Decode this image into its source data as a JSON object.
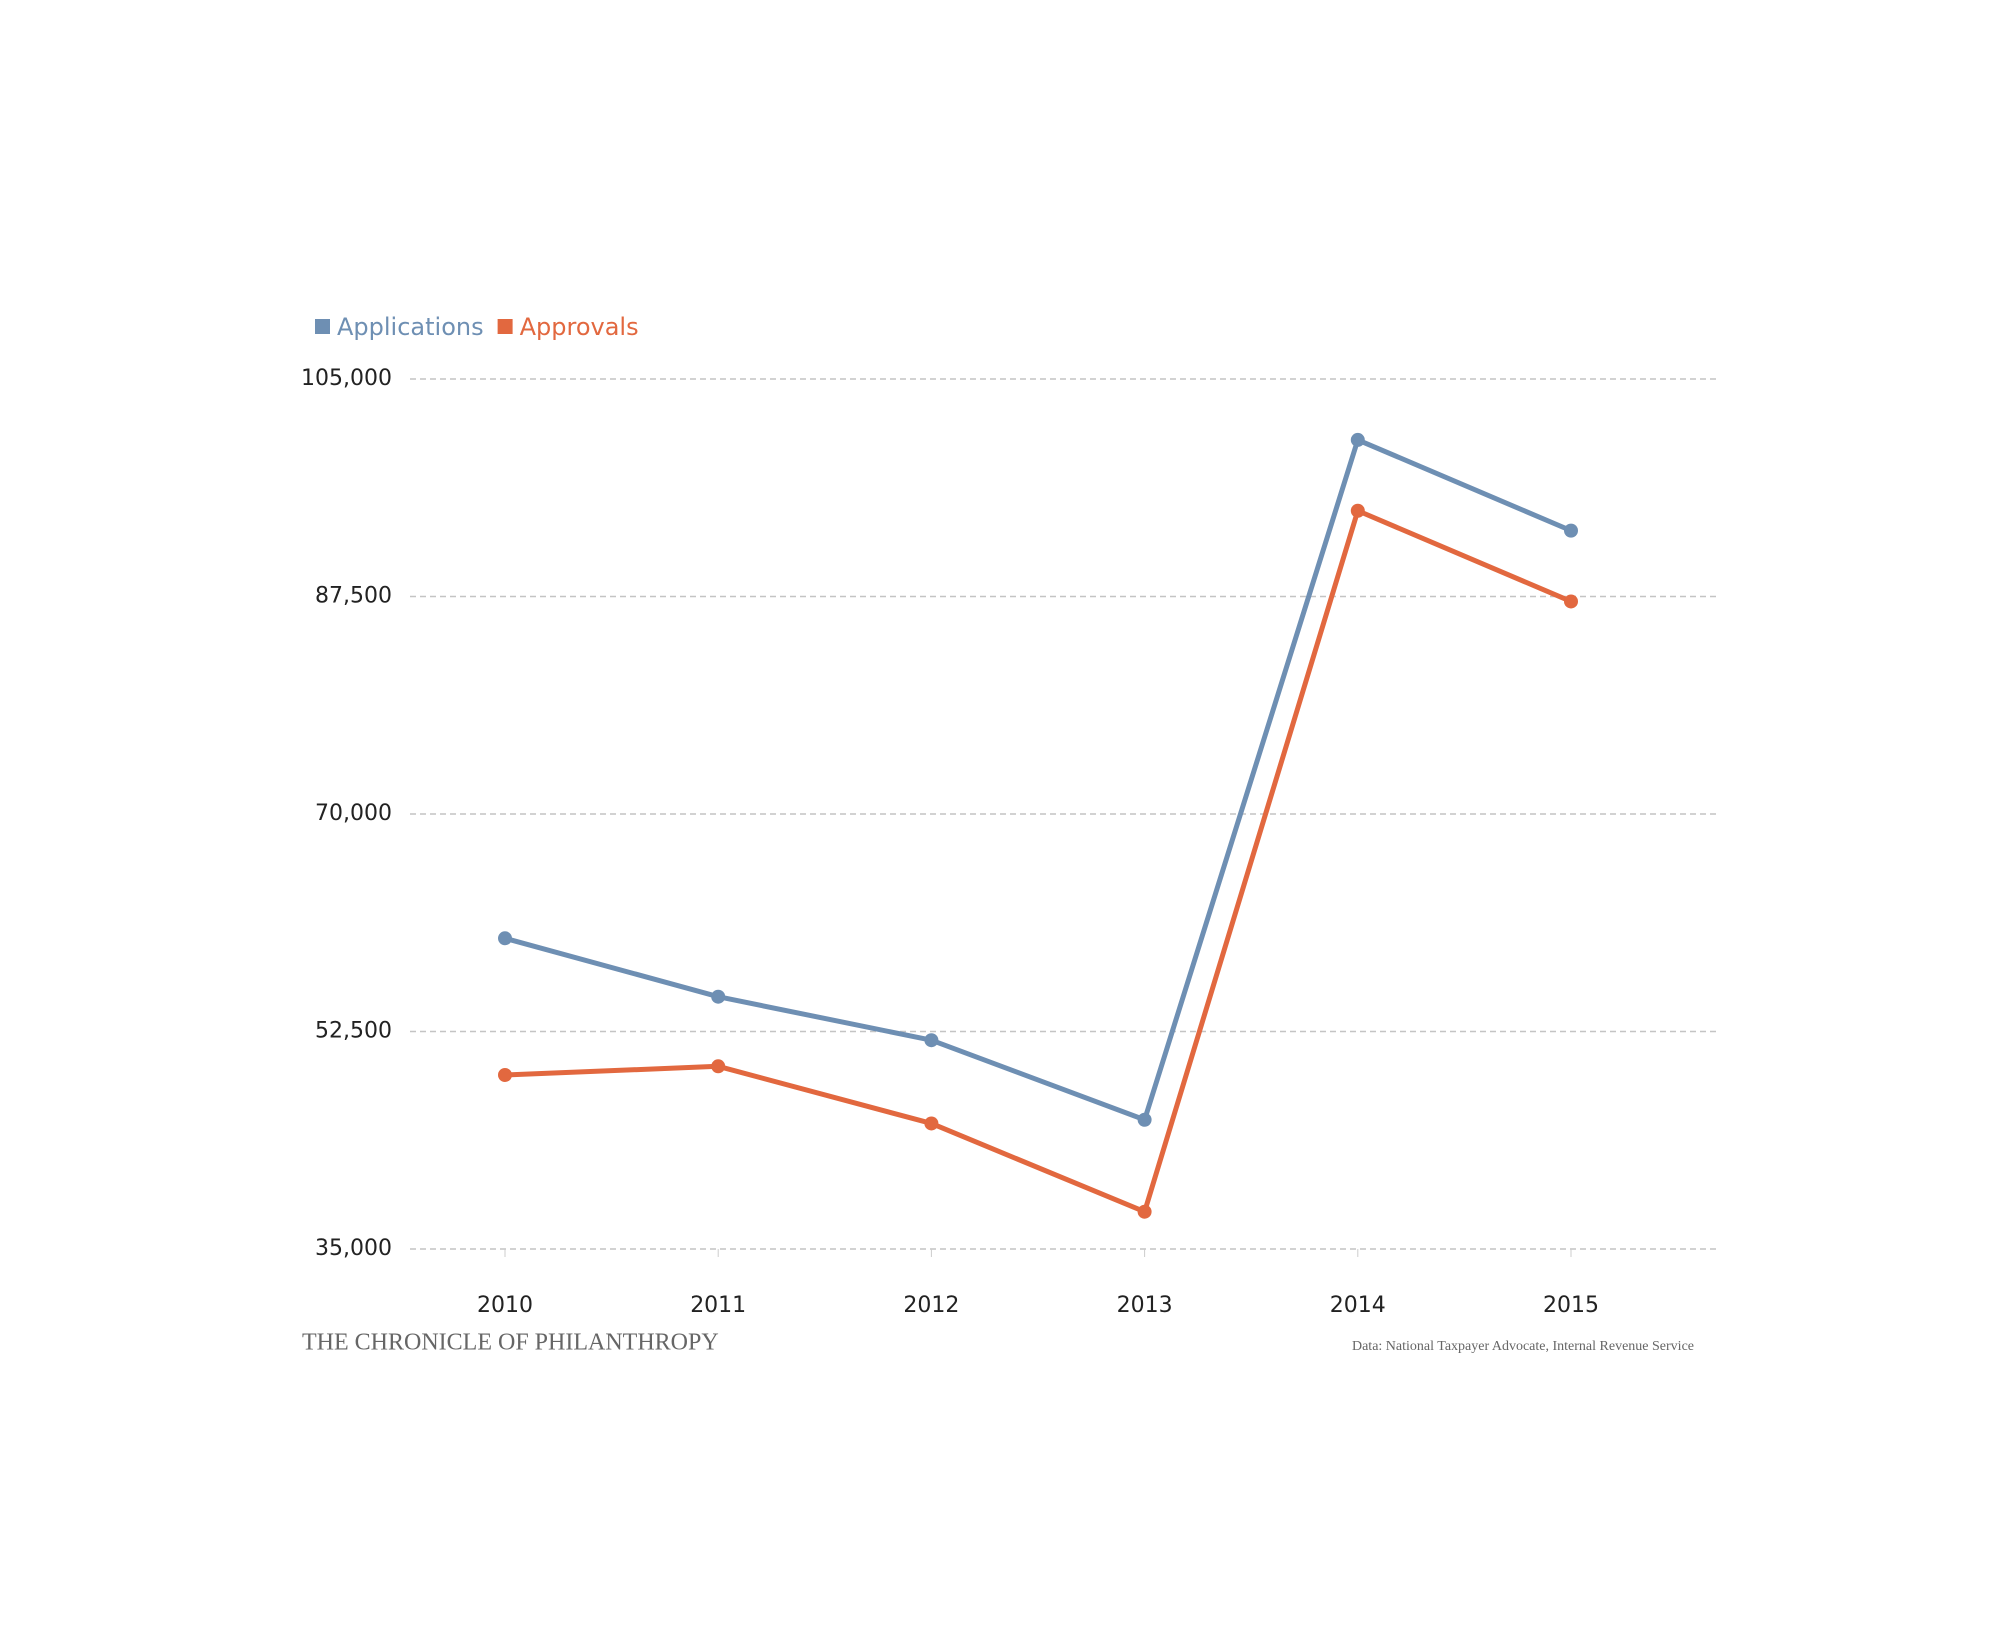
{
  "chart_data": {
    "type": "line",
    "categories": [
      "2010",
      "2011",
      "2012",
      "2013",
      "2014",
      "2015"
    ],
    "series": [
      {
        "name": "Applications",
        "color": "#6e8fb3",
        "values": [
          60000,
          55300,
          51800,
          45400,
          100100,
          92800
        ]
      },
      {
        "name": "Approvals",
        "color": "#e2683f",
        "values": [
          49000,
          49700,
          45100,
          38000,
          94400,
          87100
        ]
      }
    ],
    "ylim": [
      35000,
      105000
    ],
    "yticks": [
      {
        "value": 35000,
        "label": "35,000"
      },
      {
        "value": 52500,
        "label": "52,500"
      },
      {
        "value": 70000,
        "label": "70,000"
      },
      {
        "value": 87500,
        "label": "87,500"
      },
      {
        "value": 105000,
        "label": "105,000"
      }
    ],
    "grid": true,
    "legend": "top-left",
    "credit": "THE CHRONICLE OF PHILANTHROPY",
    "source": "Data: National Taxpayer Advocate, Internal Revenue Service"
  }
}
